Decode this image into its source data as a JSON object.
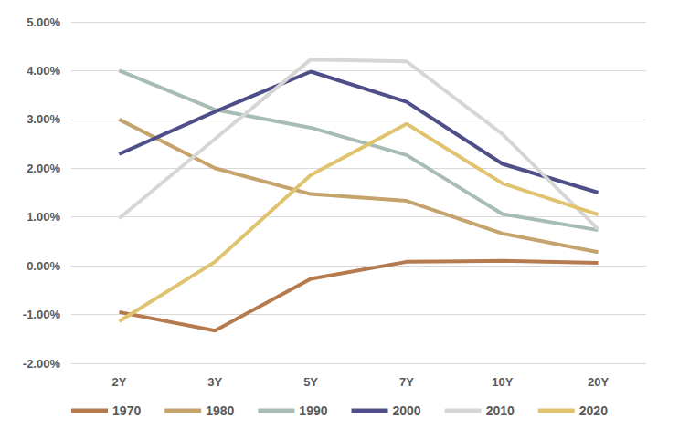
{
  "chart_data": {
    "type": "line",
    "categories": [
      "2Y",
      "3Y",
      "5Y",
      "7Y",
      "10Y",
      "20Y"
    ],
    "series": [
      {
        "name": "1970",
        "color": "#b67a4f",
        "values": [
          -0.95,
          -1.33,
          -0.27,
          0.08,
          0.1,
          0.06
        ]
      },
      {
        "name": "1980",
        "color": "#c4a36c",
        "values": [
          3.0,
          2.0,
          1.47,
          1.33,
          0.66,
          0.28
        ]
      },
      {
        "name": "1990",
        "color": "#a7bdb4",
        "values": [
          4.0,
          3.2,
          2.83,
          2.27,
          1.06,
          0.73
        ]
      },
      {
        "name": "2000",
        "color": "#4e4f88",
        "values": [
          2.29,
          3.16,
          3.98,
          3.36,
          2.09,
          1.5
        ]
      },
      {
        "name": "2010",
        "color": "#d6d6d6",
        "values": [
          0.97,
          2.6,
          4.23,
          4.19,
          2.7,
          0.75
        ]
      },
      {
        "name": "2020",
        "color": "#e0c36f",
        "values": [
          -1.14,
          0.08,
          1.86,
          2.91,
          1.69,
          1.05
        ]
      }
    ],
    "ylim": [
      -2,
      5
    ],
    "yticks": [
      {
        "value": -2,
        "label": "-2.00%"
      },
      {
        "value": -1,
        "label": "-1.00%"
      },
      {
        "value": 0,
        "label": "0.00%"
      },
      {
        "value": 1,
        "label": "1.00%"
      },
      {
        "value": 2,
        "label": "2.00%"
      },
      {
        "value": 3,
        "label": "3.00%"
      },
      {
        "value": 4,
        "label": "4.00%"
      },
      {
        "value": 5,
        "label": "5.00%"
      }
    ],
    "grid": true,
    "legend": "bottom",
    "marker": "none"
  }
}
